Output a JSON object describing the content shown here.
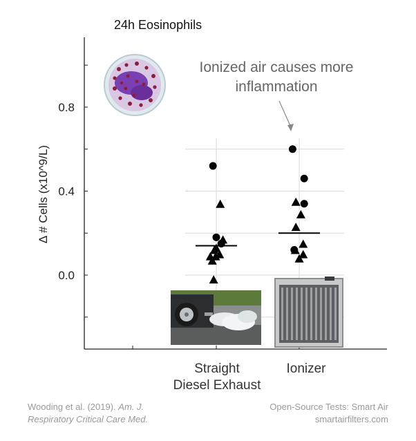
{
  "chart_data": {
    "type": "scatter",
    "title": "24h Eosinophils",
    "ylabel": "Δ # Cells (x10^9/L)",
    "xlabel": "",
    "ylim": [
      -0.35,
      1.1
    ],
    "y_ticks": [
      "0.8",
      "0.4",
      "0.0"
    ],
    "y_tick_values": [
      0.8,
      0.4,
      0.0
    ],
    "categories": [
      "Straight Diesel Exhaust",
      "Ionizer"
    ],
    "category_labels": [
      [
        "Straight",
        "Diesel Exhaust"
      ],
      [
        "Ionizer"
      ]
    ],
    "grid": true,
    "series": [
      {
        "marker": "circle",
        "points": [
          {
            "category": 0,
            "offset": -0.1,
            "y": 0.52
          },
          {
            "category": 0,
            "offset": 0.0,
            "y": 0.18
          },
          {
            "category": 0,
            "offset": 0.15,
            "y": 0.15
          },
          {
            "category": 1,
            "offset": -0.2,
            "y": 0.6
          },
          {
            "category": 1,
            "offset": 0.15,
            "y": 0.46
          },
          {
            "category": 1,
            "offset": 0.15,
            "y": 0.34
          },
          {
            "category": 1,
            "offset": -0.15,
            "y": 0.12
          }
        ]
      },
      {
        "marker": "triangle",
        "points": [
          {
            "category": 0,
            "offset": 0.12,
            "y": 0.34
          },
          {
            "category": 0,
            "offset": 0.2,
            "y": 0.17
          },
          {
            "category": 0,
            "offset": 0.0,
            "y": 0.13
          },
          {
            "category": 0,
            "offset": -0.06,
            "y": 0.12
          },
          {
            "category": 0,
            "offset": 0.1,
            "y": 0.1
          },
          {
            "category": 0,
            "offset": -0.18,
            "y": 0.09
          },
          {
            "category": 0,
            "offset": -0.02,
            "y": 0.09
          },
          {
            "category": 0,
            "offset": -0.12,
            "y": 0.07
          },
          {
            "category": 0,
            "offset": -0.08,
            "y": -0.02
          },
          {
            "category": 1,
            "offset": -0.1,
            "y": 0.35
          },
          {
            "category": 1,
            "offset": 0.05,
            "y": 0.29
          },
          {
            "category": 1,
            "offset": -0.1,
            "y": 0.23
          },
          {
            "category": 1,
            "offset": -0.12,
            "y": 0.12
          },
          {
            "category": 1,
            "offset": 0.12,
            "y": 0.15
          },
          {
            "category": 1,
            "offset": 0.12,
            "y": 0.1
          },
          {
            "category": 1,
            "offset": 0.0,
            "y": 0.08
          }
        ]
      }
    ],
    "means": [
      0.14,
      0.2
    ],
    "annotation": [
      "Ionized air causes more",
      "inflammation"
    ]
  },
  "credits": {
    "left_line1_plain": "Wooding et al. (2019).",
    "left_line1_italic": "Am. J.",
    "left_line2_italic": "Respiratory Critical Care Med.",
    "right_line1": "Open-Source Tests: Smart Air",
    "right_line2": "smartairfilters.com"
  },
  "icons": [
    "eosinophil-cell-image",
    "diesel-exhaust-photo",
    "ionizer-photo"
  ],
  "colors": {
    "points": "#000000",
    "grid": "#d9d9d9",
    "axis": "#222222",
    "cell": "#7a3fb0",
    "annotation": "#666666"
  }
}
